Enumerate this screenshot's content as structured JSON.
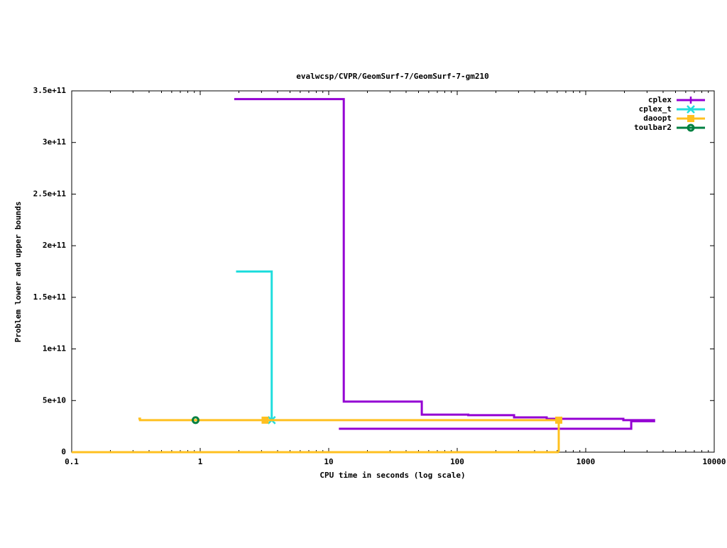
{
  "chart_data": {
    "type": "line",
    "title": "evalwcsp/CVPR/GeomSurf-7/GeomSurf-7-gm210",
    "x_label": "CPU time in seconds (log scale)",
    "y_label": "Problem lower and upper bounds",
    "xscale": "log",
    "xlim": [
      0.1,
      10000
    ],
    "xticks": [
      0.1,
      1,
      10,
      100,
      1000,
      10000
    ],
    "ylim": [
      0,
      350000000000
    ],
    "yticks": [
      0,
      {
        "value": 50000000000,
        "label": "5e+10"
      },
      {
        "value": 100000000000,
        "label": "1e+11"
      },
      {
        "value": 150000000000,
        "label": "1.5e+11"
      },
      {
        "value": 200000000000,
        "label": "2e+11"
      },
      {
        "value": 250000000000,
        "label": "2.5e+11"
      },
      {
        "value": 300000000000,
        "label": "3e+11"
      },
      {
        "value": 350000000000,
        "label": "3.5e+11"
      }
    ],
    "legend": "top-right",
    "series": [
      {
        "name": "cplex",
        "color": "#9400d3",
        "marker": "plus",
        "x": [
          1.84,
          13.1,
          13.1,
          53,
          53,
          122,
          122,
          277,
          277,
          497,
          497,
          1963,
          1963,
          3470,
          null,
          12,
          2260,
          2260,
          3470
        ],
        "values": [
          342000000000,
          342000000000,
          49000000000,
          49000000000,
          36400000000,
          36400000000,
          35800000000,
          35800000000,
          33700000000,
          33700000000,
          32300000000,
          32300000000,
          31000000000,
          31000000000,
          null,
          22700000000,
          22700000000,
          30000000000,
          30000000000
        ]
      },
      {
        "name": "cplex_t",
        "color": "#22dddd",
        "marker": "star",
        "x": [
          1.9,
          3.6,
          3.6
        ],
        "values": [
          175000000000,
          175000000000,
          31000000000
        ],
        "markers": {
          "x": [
            3.6
          ],
          "values": [
            31000000000
          ]
        }
      },
      {
        "name": "daoopt",
        "color": "#ffc020",
        "marker": "square",
        "x": [
          0.33,
          0.34,
          0.34,
          617,
          617,
          null,
          0.1,
          617
        ],
        "values": [
          32500000000,
          32500000000,
          31000000000,
          31000000000,
          0,
          null,
          0,
          0
        ],
        "markers": {
          "x": [
            3.2,
            617
          ],
          "values": [
            31000000000,
            31000000000
          ]
        }
      },
      {
        "name": "toulbar2",
        "color": "#008040",
        "marker": "circle",
        "markers": {
          "x": [
            0.92
          ],
          "values": [
            31000000000
          ]
        }
      }
    ]
  }
}
